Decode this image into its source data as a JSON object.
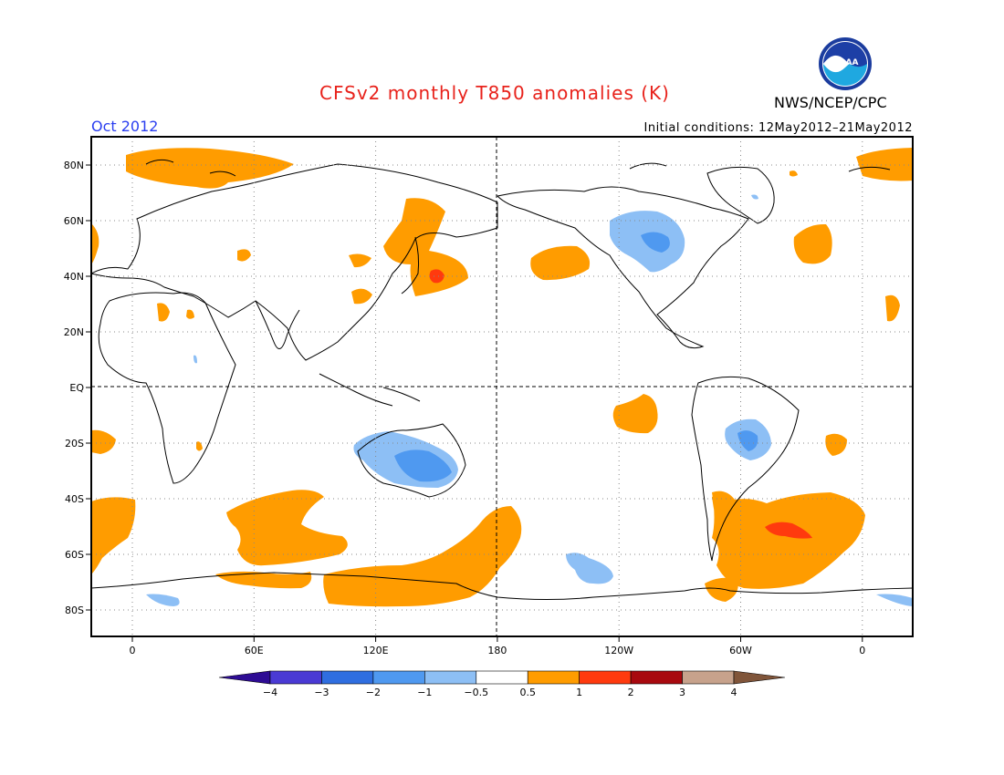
{
  "header": {
    "title": "CFSv2 monthly T850 anomalies (K)",
    "agency": "NWS/NCEP/CPC",
    "logo_text": "NOAA",
    "period": "Oct 2012",
    "initial_conditions": "Initial conditions: 12May2012–21May2012"
  },
  "axes": {
    "lat_labels": [
      "80N",
      "60N",
      "40N",
      "20N",
      "EQ",
      "20S",
      "40S",
      "60S",
      "80S"
    ],
    "lon_labels": [
      "0",
      "60E",
      "120E",
      "180",
      "120W",
      "60W",
      "0"
    ]
  },
  "colorbar": {
    "labels": [
      "−4",
      "−3",
      "−2",
      "−1",
      "−0.5",
      "0.5",
      "1",
      "2",
      "3",
      "4"
    ],
    "colors": [
      "#2e0c94",
      "#4a3ad4",
      "#2f6ee0",
      "#4f99f0",
      "#8dbff5",
      "#ffffff",
      "#ff9c00",
      "#ff3a0e",
      "#a8090f",
      "#c7a28c",
      "#80553a"
    ]
  },
  "colors": {
    "warm_05": "#ff9c00",
    "warm_1": "#ff3a0e",
    "cool_05": "#8dbff5",
    "cool_1": "#4f99f0",
    "title": "#e8221b",
    "period": "#2a3ef0"
  }
}
